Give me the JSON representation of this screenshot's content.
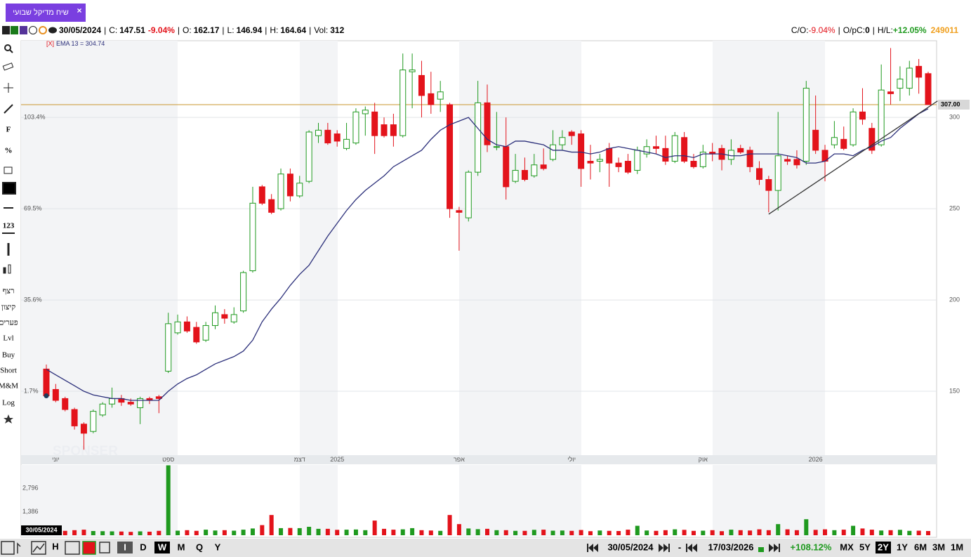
{
  "tab": {
    "title": "שיח מדיקל שבועי",
    "close": "×"
  },
  "header": {
    "date": "30/05/2024",
    "c": "C:",
    "change": "-9.04%",
    "o": "O:",
    "l": "L:",
    "h": "H:",
    "vol": "Vol:",
    "sep": "|",
    "co": "C/O:",
    "co_value": "-9.04%",
    "opc": "O/pC:",
    "opc_value": "0",
    "hl": "H/L:",
    "hl_value": "+12.05%",
    "code": "249011"
  },
  "tools": [
    "F",
    "%",
    "123",
    "רצף",
    "קיצון",
    "פערים",
    "Lvl",
    "Buy",
    "Short",
    "M&M",
    "Log"
  ],
  "bottom_bar": {
    "periods": [
      "I",
      "D",
      "W",
      "M",
      "Q",
      "Y"
    ],
    "from": "30/05/2024",
    "dash": "-",
    "to": "17/03/2026",
    "change": "+108.12%",
    "ranges": [
      "MX",
      "5Y",
      "2Y",
      "1Y",
      "6M",
      "3M",
      "1M"
    ]
  },
  "watermark": "SPONSER",
  "chart_data": {
    "type": "candlestick",
    "indicator": {
      "close": "[X]",
      "label": "EMA 13 = 304.74"
    },
    "up_color": "#1f9a1f",
    "down_color": "#e3131b",
    "ema_color": "#2b2f7a",
    "hline_color": "#c8962e",
    "trend_color": "#333333",
    "ylim": [
      115,
      342
    ],
    "yticks": [
      150,
      200,
      250,
      300
    ],
    "y_left_ticks": [
      {
        "value": 150,
        "label": "1.7%"
      },
      {
        "value": 200,
        "label": "35.6%"
      },
      {
        "value": 250,
        "label": "69.5%"
      },
      {
        "value": 300,
        "label": "103.4%"
      }
    ],
    "hline": {
      "value": 307,
      "label": "307.00"
    },
    "trendline": {
      "x": [
        77,
        95
      ],
      "y": [
        247,
        309
      ]
    },
    "categories": [
      null,
      "יוני",
      null,
      null,
      null,
      null,
      null,
      null,
      null,
      null,
      null,
      null,
      null,
      "ספט",
      null,
      null,
      null,
      null,
      null,
      null,
      null,
      null,
      null,
      null,
      null,
      null,
      null,
      "דצמ",
      null,
      null,
      null,
      "2025",
      null,
      null,
      null,
      null,
      null,
      null,
      null,
      null,
      null,
      null,
      null,
      null,
      "אפר",
      null,
      null,
      null,
      null,
      null,
      null,
      null,
      null,
      null,
      null,
      null,
      "יולי",
      null,
      null,
      null,
      null,
      null,
      null,
      null,
      null,
      null,
      null,
      null,
      null,
      null,
      "אוק",
      null,
      null,
      null,
      null,
      null,
      null,
      null,
      null,
      null,
      null,
      null,
      "2026",
      null,
      null,
      null,
      null,
      null,
      null,
      null,
      null,
      null,
      null,
      null,
      null
    ],
    "ohlc": [
      [
        162.17,
        164.64,
        146.94,
        147.51
      ],
      [
        151,
        154,
        144,
        145
      ],
      [
        146,
        147,
        139,
        140
      ],
      [
        140,
        141,
        129,
        131
      ],
      [
        132,
        133,
        118,
        127
      ],
      [
        128,
        140,
        127,
        139
      ],
      [
        137,
        144,
        136,
        143
      ],
      [
        143,
        152,
        141,
        146
      ],
      [
        146,
        148,
        142,
        144
      ],
      [
        144,
        146,
        142,
        143
      ],
      [
        141,
        147,
        132,
        146
      ],
      [
        146,
        147,
        143,
        145
      ],
      [
        147,
        148,
        138,
        146
      ],
      [
        161,
        193,
        160,
        187
      ],
      [
        182,
        192,
        181,
        188
      ],
      [
        188,
        191,
        182,
        183
      ],
      [
        185,
        188,
        176,
        177
      ],
      [
        178,
        188,
        177,
        186
      ],
      [
        186,
        197,
        184,
        193
      ],
      [
        192,
        195,
        187,
        190
      ],
      [
        188,
        196,
        187,
        192
      ],
      [
        194,
        216,
        193,
        215
      ],
      [
        216,
        262,
        215,
        253
      ],
      [
        262,
        263,
        252,
        253
      ],
      [
        255,
        258,
        247,
        248
      ],
      [
        250,
        272,
        249,
        269
      ],
      [
        269,
        272,
        254,
        257
      ],
      [
        257,
        268,
        256,
        264
      ],
      [
        265,
        293,
        264,
        292
      ],
      [
        290,
        297,
        286,
        293
      ],
      [
        293,
        297,
        285,
        286
      ],
      [
        291,
        293,
        284,
        287
      ],
      [
        283,
        297,
        282,
        288
      ],
      [
        286,
        305,
        285,
        303
      ],
      [
        302,
        306,
        290,
        304
      ],
      [
        303,
        308,
        280,
        290
      ],
      [
        296,
        300,
        289,
        290
      ],
      [
        296,
        302,
        284,
        290
      ],
      [
        290,
        335,
        289,
        326
      ],
      [
        325,
        335,
        305,
        326
      ],
      [
        323,
        331,
        300,
        312
      ],
      [
        313,
        325,
        302,
        307
      ],
      [
        310,
        320,
        303,
        314
      ],
      [
        307,
        308,
        245,
        250
      ],
      [
        249,
        251,
        227,
        248
      ],
      [
        245,
        271,
        243,
        270
      ],
      [
        270,
        320,
        268,
        308
      ],
      [
        308,
        318,
        281,
        285
      ],
      [
        284,
        303,
        282,
        284
      ],
      [
        284,
        300,
        255,
        262
      ],
      [
        265,
        280,
        264,
        271
      ],
      [
        271,
        278,
        265,
        266
      ],
      [
        268,
        280,
        267,
        274
      ],
      [
        274,
        283,
        271,
        272
      ],
      [
        277,
        293,
        276,
        285
      ],
      [
        285,
        293,
        282,
        289
      ],
      [
        292,
        293,
        285,
        290
      ],
      [
        291,
        293,
        262,
        272
      ],
      [
        276,
        285,
        266,
        275
      ],
      [
        276,
        280,
        270,
        277
      ],
      [
        283,
        286,
        262,
        275
      ],
      [
        275,
        278,
        270,
        273
      ],
      [
        276,
        280,
        269,
        270
      ],
      [
        271,
        284,
        269,
        282
      ],
      [
        280,
        288,
        278,
        284
      ],
      [
        284,
        290,
        280,
        283
      ],
      [
        283,
        290,
        274,
        276
      ],
      [
        276,
        292,
        275,
        290
      ],
      [
        289,
        292,
        275,
        276
      ],
      [
        276,
        280,
        272,
        273
      ],
      [
        273,
        285,
        272,
        281
      ],
      [
        281,
        286,
        276,
        280
      ],
      [
        283,
        285,
        271,
        277
      ],
      [
        277,
        288,
        274,
        282
      ],
      [
        283,
        285,
        280,
        281
      ],
      [
        282,
        284,
        270,
        273
      ],
      [
        272,
        276,
        263,
        266
      ],
      [
        266,
        268,
        248,
        260
      ],
      [
        260,
        303,
        249,
        279
      ],
      [
        277,
        279,
        274,
        276
      ],
      [
        277,
        282,
        272,
        274
      ],
      [
        276,
        320,
        274,
        316
      ],
      [
        293,
        312,
        280,
        282
      ],
      [
        282,
        285,
        265,
        276
      ],
      [
        285,
        298,
        283,
        289
      ],
      [
        288,
        295,
        282,
        283
      ],
      [
        285,
        305,
        284,
        303
      ],
      [
        303,
        316,
        296,
        299
      ],
      [
        294,
        297,
        280,
        282
      ],
      [
        285,
        329,
        284,
        315
      ],
      [
        314,
        338,
        307,
        313
      ],
      [
        316,
        328,
        309,
        321
      ],
      [
        316,
        331,
        312,
        327
      ],
      [
        328,
        332,
        313,
        322
      ],
      [
        324,
        325,
        307,
        307
      ]
    ],
    "ema": [
      162,
      159,
      156,
      153,
      150,
      148,
      147,
      146,
      146,
      145,
      145,
      145,
      145,
      150,
      154,
      157,
      159,
      162,
      165,
      167,
      169,
      172,
      178,
      188,
      195,
      201,
      208,
      214,
      219,
      227,
      235,
      242,
      249,
      255,
      260,
      264,
      268,
      273,
      276,
      279,
      282,
      288,
      293,
      296,
      298,
      300,
      294,
      288,
      285,
      284,
      287,
      287,
      286,
      285,
      282,
      282,
      281,
      281,
      280,
      281,
      283,
      284,
      283,
      282,
      281,
      280,
      278,
      279,
      279,
      278,
      280,
      280,
      280,
      279,
      279,
      280,
      280,
      280,
      280,
      279,
      278,
      275,
      275,
      276,
      280,
      280,
      279,
      282,
      284,
      287,
      289,
      294,
      298,
      302,
      304.74
    ],
    "volume": [
      312,
      280,
      260,
      300,
      330,
      250,
      240,
      230,
      220,
      200,
      230,
      210,
      260,
      4150,
      270,
      300,
      260,
      330,
      280,
      300,
      270,
      330,
      400,
      600,
      1200,
      420,
      430,
      420,
      500,
      380,
      380,
      320,
      330,
      340,
      300,
      870,
      380,
      330,
      350,
      420,
      300,
      280,
      260,
      1200,
      660,
      400,
      360,
      380,
      300,
      300,
      260,
      260,
      320,
      330,
      270,
      280,
      260,
      310,
      240,
      280,
      260,
      250,
      330,
      560,
      280,
      260,
      300,
      350,
      320,
      260,
      270,
      300,
      240,
      330,
      300,
      280,
      350,
      300,
      660,
      350,
      300,
      950,
      320,
      350,
      300,
      330,
      560,
      400,
      330,
      280,
      300,
      320,
      260,
      270,
      250
    ],
    "volume_ylim": [
      0,
      4170
    ],
    "volume_ticks": [
      {
        "value": 2796,
        "label": "2,796"
      },
      {
        "value": 1386,
        "label": "1,386"
      }
    ]
  }
}
